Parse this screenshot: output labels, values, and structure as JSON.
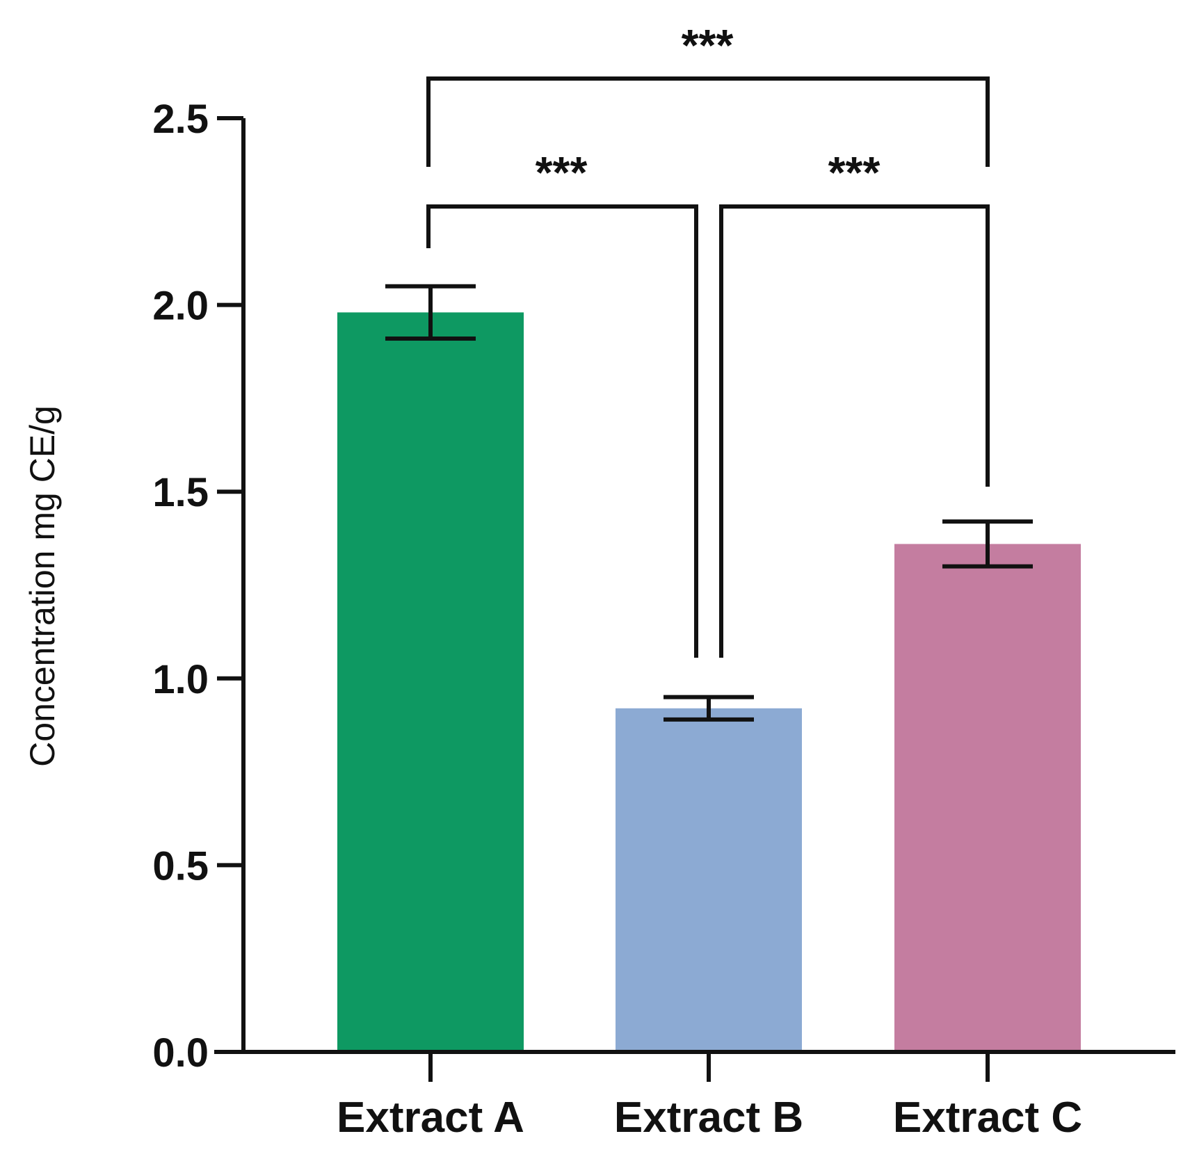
{
  "chart_data": {
    "type": "bar",
    "title": "",
    "xlabel": "",
    "ylabel": "Concentration mg CE/g",
    "ylim": [
      0,
      2.5
    ],
    "yticks": [
      0.0,
      0.5,
      1.0,
      1.5,
      2.0,
      2.5
    ],
    "ytick_labels": [
      "0.0",
      "0.5",
      "1.0",
      "1.5",
      "2.0",
      "2.5"
    ],
    "categories": [
      "Extract A",
      "Extract B",
      "Extract C"
    ],
    "values": [
      1.98,
      0.92,
      1.36
    ],
    "error_low": [
      1.91,
      0.89,
      1.3
    ],
    "error_high": [
      2.05,
      0.95,
      1.42
    ],
    "colors": [
      "#0e9962",
      "#8caad3",
      "#c47da0"
    ],
    "grid": false,
    "significance": [
      {
        "from": 0,
        "to": 2,
        "label": "***"
      },
      {
        "from": 0,
        "to": 1,
        "label": "***"
      },
      {
        "from": 1,
        "to": 2,
        "label": "***"
      }
    ]
  }
}
